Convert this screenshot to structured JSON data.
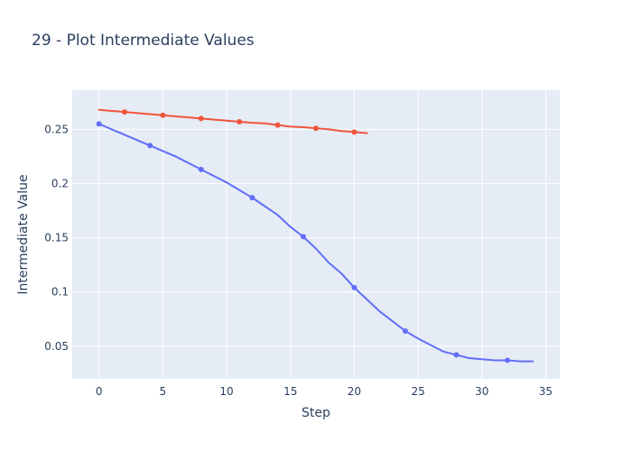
{
  "chart_data": {
    "type": "line",
    "title": "29 - Plot Intermediate Values",
    "xlabel": "Step",
    "ylabel": "Intermediate Value",
    "xlim": [
      -2.1,
      36.1
    ],
    "ylim": [
      0.0199,
      0.2861
    ],
    "xticks": [
      0,
      5,
      10,
      15,
      20,
      25,
      30,
      35
    ],
    "yticks": [
      0.05,
      0.1,
      0.15,
      0.2,
      0.25
    ],
    "ytick_labels": [
      "0.05",
      "0.1",
      "0.15",
      "0.2",
      "0.25"
    ],
    "grid": true,
    "legend": "none",
    "series": [
      {
        "color": "#636efa",
        "line_x": [
          0,
          1,
          2,
          3,
          4,
          5,
          6,
          7,
          8,
          9,
          10,
          11,
          12,
          13,
          14,
          15,
          16,
          17,
          18,
          19,
          20,
          21,
          22,
          23,
          24,
          25,
          26,
          27,
          28,
          29,
          30,
          31,
          32,
          33,
          34
        ],
        "line_y": [
          0.255,
          0.25,
          0.245,
          0.24,
          0.235,
          0.23,
          0.225,
          0.219,
          0.213,
          0.207,
          0.201,
          0.194,
          0.187,
          0.179,
          0.171,
          0.16,
          0.151,
          0.14,
          0.127,
          0.117,
          0.104,
          0.093,
          0.082,
          0.073,
          0.064,
          0.057,
          0.051,
          0.045,
          0.042,
          0.039,
          0.038,
          0.037,
          0.037,
          0.036,
          0.036
        ],
        "marker_x": [
          0,
          4,
          8,
          12,
          16,
          20,
          24,
          28,
          32
        ],
        "marker_y": [
          0.255,
          0.235,
          0.213,
          0.187,
          0.151,
          0.104,
          0.064,
          0.042,
          0.037
        ]
      },
      {
        "color": "#ef553b",
        "line_x": [
          0,
          1,
          2,
          3,
          4,
          5,
          6,
          7,
          8,
          9,
          10,
          11,
          12,
          13,
          14,
          15,
          16,
          17,
          18,
          19,
          20,
          21
        ],
        "line_y": [
          0.268,
          0.267,
          0.266,
          0.265,
          0.264,
          0.263,
          0.262,
          0.261,
          0.26,
          0.259,
          0.258,
          0.257,
          0.256,
          0.2555,
          0.254,
          0.2525,
          0.252,
          0.251,
          0.25,
          0.2485,
          0.2475,
          0.2465
        ],
        "marker_x": [
          2,
          5,
          8,
          11,
          14,
          17,
          20
        ],
        "marker_y": [
          0.266,
          0.263,
          0.26,
          0.257,
          0.254,
          0.251,
          0.2475
        ]
      }
    ]
  }
}
